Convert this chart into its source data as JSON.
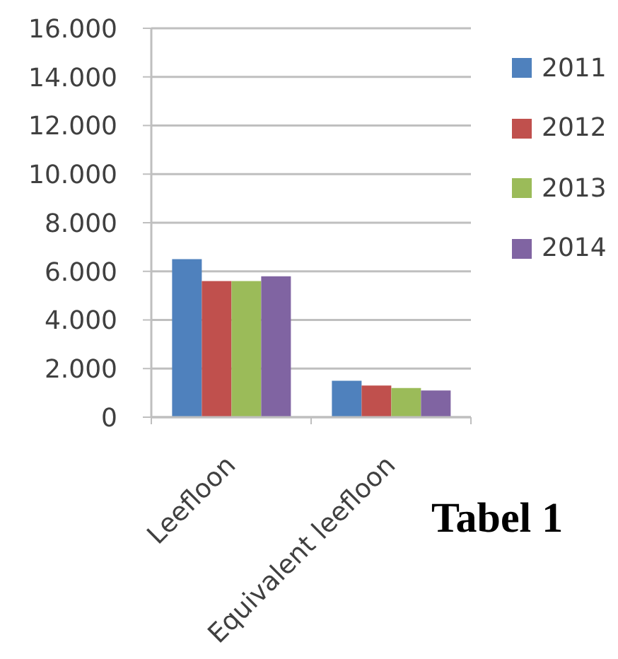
{
  "chart_data": {
    "type": "bar",
    "categories": [
      "Leefloon",
      "Equivalent leefloon"
    ],
    "series": [
      {
        "name": "2011",
        "color": "#4f81bd",
        "values": [
          6500,
          1500
        ]
      },
      {
        "name": "2012",
        "color": "#c0504d",
        "values": [
          5600,
          1300
        ]
      },
      {
        "name": "2013",
        "color": "#9bbb59",
        "values": [
          5600,
          1200
        ]
      },
      {
        "name": "2014",
        "color": "#8064a2",
        "values": [
          5800,
          1100
        ]
      }
    ],
    "ylim": [
      0,
      16000
    ],
    "yticks": [
      0,
      {
        "value": 2000,
        "label": "2.000"
      },
      {
        "value": 4000,
        "label": "4.000"
      },
      {
        "value": 6000,
        "label": "6.000"
      },
      {
        "value": 8000,
        "label": "8.000"
      },
      {
        "value": 10000,
        "label": "10.000"
      },
      {
        "value": 12000,
        "label": "12.000"
      },
      {
        "value": 14000,
        "label": "14.000"
      },
      {
        "value": 16000,
        "label": "16.000"
      }
    ],
    "grid": "y",
    "legend": "right",
    "annotations": [
      "Tabel 1"
    ]
  }
}
